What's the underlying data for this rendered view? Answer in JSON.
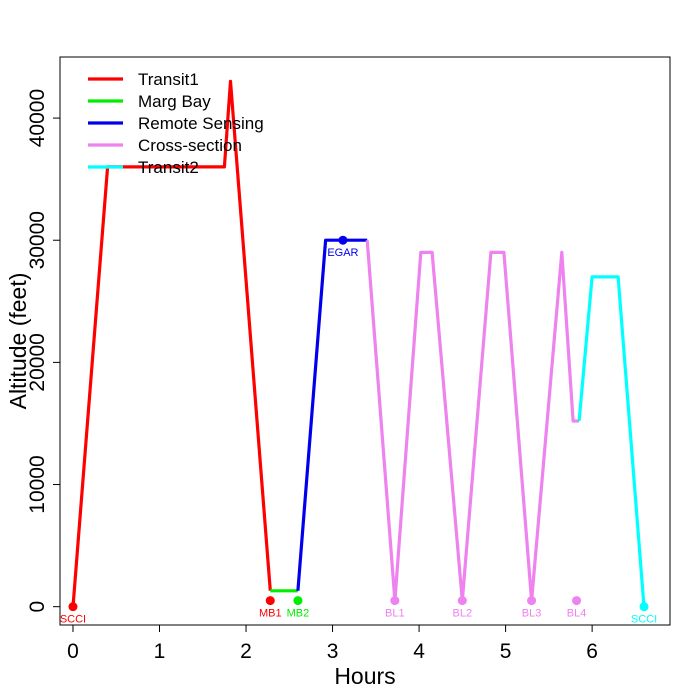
{
  "chart_data": {
    "type": "line",
    "title": "",
    "xlabel": "Hours",
    "ylabel": "Altitude (feet)",
    "xlim": [
      -0.15,
      6.9
    ],
    "ylim": [
      -1500,
      45000
    ],
    "xticks": [
      0,
      1,
      2,
      3,
      4,
      5,
      6
    ],
    "yticks": [
      0,
      10000,
      20000,
      30000,
      40000
    ],
    "grid": false,
    "legend_position": "top-left",
    "series": [
      {
        "name": "Transit1",
        "color": "#ff0000",
        "x": [
          0,
          0.4,
          1.75,
          1.82,
          2.28
        ],
        "y": [
          0,
          36000,
          36000,
          43000,
          1300
        ]
      },
      {
        "name": "Marg Bay",
        "color": "#00ee00",
        "x": [
          2.28,
          2.6
        ],
        "y": [
          1300,
          1300
        ]
      },
      {
        "name": "Remote Sensing",
        "color": "#0000ee",
        "x": [
          2.6,
          2.92,
          3.4
        ],
        "y": [
          1300,
          30000,
          30000
        ]
      },
      {
        "name": "Cross-section",
        "color": "#ee82ee",
        "x": [
          3.4,
          3.72,
          4.02,
          4.15,
          4.5,
          4.83,
          4.98,
          5.3,
          5.65,
          5.78,
          5.85
        ],
        "y": [
          30000,
          500,
          29000,
          29000,
          500,
          29000,
          29000,
          500,
          29000,
          15200,
          15200
        ]
      },
      {
        "name": "Transit2",
        "color": "#00ffff",
        "x": [
          5.85,
          6.0,
          6.3,
          6.6
        ],
        "y": [
          15200,
          27000,
          27000,
          0
        ]
      }
    ],
    "annotations": [
      {
        "label": "SCCI",
        "x": 0,
        "y": 0,
        "color": "#ff0000"
      },
      {
        "label": "MB1",
        "x": 2.28,
        "y": 500,
        "color": "#ff0000"
      },
      {
        "label": "MB2",
        "x": 2.6,
        "y": 500,
        "color": "#00ee00"
      },
      {
        "label": "EGAR",
        "x": 3.12,
        "y": 30000,
        "color": "#0000ee"
      },
      {
        "label": "BL1",
        "x": 3.72,
        "y": 500,
        "color": "#ee82ee"
      },
      {
        "label": "BL2",
        "x": 4.5,
        "y": 500,
        "color": "#ee82ee"
      },
      {
        "label": "BL3",
        "x": 5.3,
        "y": 500,
        "color": "#ee82ee"
      },
      {
        "label": "BL4",
        "x": 5.82,
        "y": 500,
        "color": "#ee82ee"
      },
      {
        "label": "SCCI",
        "x": 6.6,
        "y": 0,
        "color": "#00ffff"
      }
    ]
  }
}
